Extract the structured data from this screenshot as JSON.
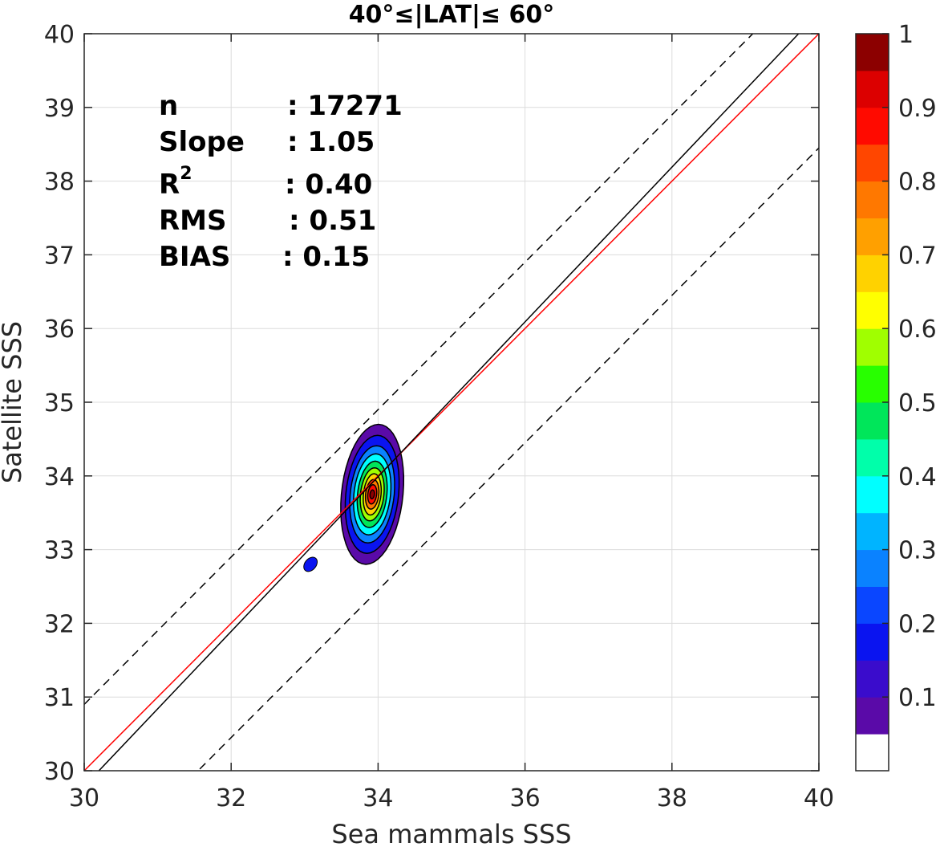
{
  "chart_data": {
    "type": "contour",
    "title": "40°≤|LAT|≤ 60°",
    "xlabel": "Sea mammals SSS",
    "ylabel": "Satellite SSS",
    "xlim": [
      30,
      40
    ],
    "ylim": [
      30,
      40
    ],
    "xticks": [
      "30",
      "32",
      "34",
      "36",
      "38",
      "40"
    ],
    "yticks": [
      "30",
      "31",
      "32",
      "33",
      "34",
      "35",
      "36",
      "37",
      "38",
      "39",
      "40"
    ],
    "grid": true,
    "stats": [
      {
        "label": "n",
        "value": ": 17271"
      },
      {
        "label": "Slope",
        "value": ": 1.05"
      },
      {
        "label": "R",
        "sup": "2",
        "value": ": 0.40"
      },
      {
        "label": "RMS",
        "value": ": 0.51"
      },
      {
        "label": "BIAS",
        "value": ": 0.15"
      }
    ],
    "lines": [
      {
        "role": "one-to-one",
        "color": "#ff0000",
        "style": "solid",
        "slope": 1.0,
        "intercept": 0.0
      },
      {
        "role": "regression",
        "color": "#000000",
        "style": "solid",
        "slope": 1.05,
        "intercept": -1.71
      },
      {
        "role": "upper-bound",
        "color": "#000000",
        "style": "dashed",
        "slope": 1.0,
        "intercept": 0.9
      },
      {
        "role": "lower-bound",
        "color": "#000000",
        "style": "dashed",
        "slope": 1.0,
        "intercept": -1.55
      }
    ],
    "density": {
      "center": [
        33.92,
        33.75
      ],
      "levels": [
        {
          "level": 0.05,
          "rx": 0.42,
          "ry": 0.95
        },
        {
          "level": 0.15,
          "rx": 0.36,
          "ry": 0.8
        },
        {
          "level": 0.25,
          "rx": 0.3,
          "ry": 0.66
        },
        {
          "level": 0.35,
          "rx": 0.25,
          "ry": 0.55
        },
        {
          "level": 0.45,
          "rx": 0.2,
          "ry": 0.45
        },
        {
          "level": 0.55,
          "rx": 0.16,
          "ry": 0.36
        },
        {
          "level": 0.65,
          "rx": 0.12,
          "ry": 0.28
        },
        {
          "level": 0.75,
          "rx": 0.09,
          "ry": 0.2
        },
        {
          "level": 0.85,
          "rx": 0.06,
          "ry": 0.13
        },
        {
          "level": 0.95,
          "rx": 0.03,
          "ry": 0.06
        }
      ],
      "small_patch": {
        "center": [
          33.08,
          32.8
        ],
        "level": 0.15
      }
    },
    "colorbar": {
      "ticks": [
        "0.1",
        "0.2",
        "0.3",
        "0.4",
        "0.5",
        "0.6",
        "0.7",
        "0.8",
        "0.9",
        "1"
      ],
      "colors": [
        "#ffffff",
        "#5a0aa8",
        "#3a0ccc",
        "#0a14f0",
        "#0a46ff",
        "#0a82ff",
        "#00b4ff",
        "#00ffff",
        "#00ffaa",
        "#00e65a",
        "#28ff00",
        "#a0ff00",
        "#ffff00",
        "#ffd200",
        "#ffa000",
        "#ff7800",
        "#ff4600",
        "#ff0a00",
        "#dc0000",
        "#8c0000"
      ]
    }
  }
}
